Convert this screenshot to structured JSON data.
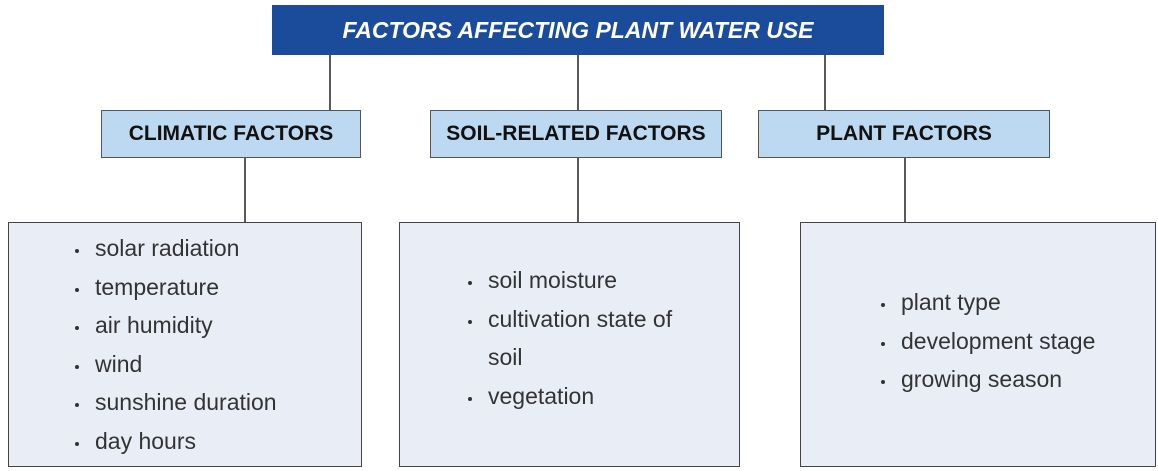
{
  "title": "FACTORS AFFECTING PLANT WATER USE",
  "groups": [
    {
      "label": "CLIMATIC FACTORS",
      "items": [
        "solar radiation",
        "temperature",
        "air humidity",
        "wind",
        "sunshine duration",
        "day hours"
      ]
    },
    {
      "label": "SOIL-RELATED FACTORS",
      "items": [
        "soil moisture",
        "cultivation state of soil",
        "vegetation"
      ]
    },
    {
      "label": "PLANT FACTORS",
      "items": [
        "plant type",
        "development stage",
        "growing season"
      ]
    }
  ]
}
